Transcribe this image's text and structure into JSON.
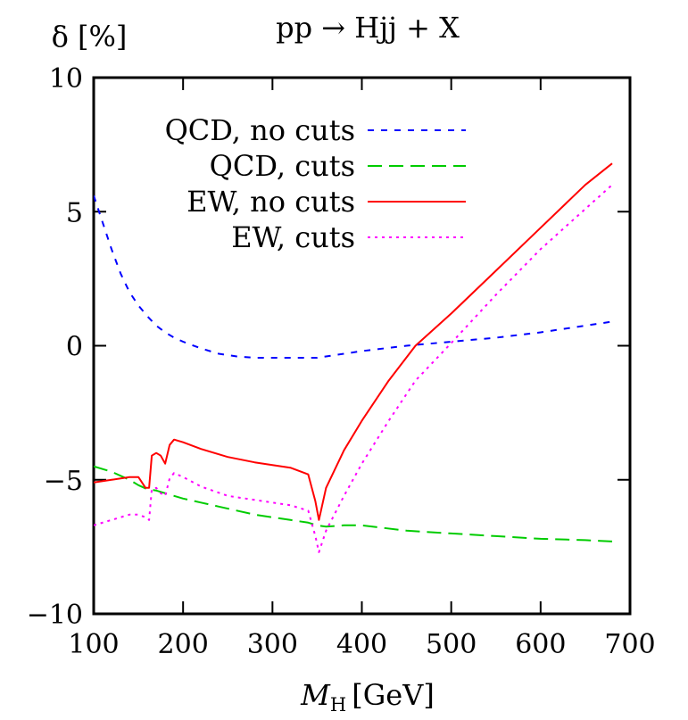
{
  "chart_data": {
    "type": "line",
    "title": "pp → Hjj + X",
    "xlabel": "M",
    "xlabel_sub": "H",
    "xlabel_unit": "[GeV]",
    "ylabel": "δ [%]",
    "xlim": [
      100,
      700
    ],
    "ylim": [
      -10,
      10
    ],
    "xticks": [
      100,
      200,
      300,
      400,
      500,
      600,
      700
    ],
    "yticks": [
      -10,
      -5,
      0,
      5,
      10
    ],
    "ytick_labels": [
      "−10",
      "−5",
      "0",
      "5",
      "10"
    ],
    "grid": false,
    "legend_position": "top-right",
    "series": [
      {
        "name": "QCD, no cuts",
        "color": "#0000ff",
        "dash": "7,8",
        "x": [
          100,
          110,
          120,
          130,
          140,
          150,
          160,
          170,
          180,
          190,
          200,
          220,
          240,
          260,
          280,
          300,
          320,
          340,
          350,
          360,
          380,
          400,
          450,
          500,
          550,
          600,
          650,
          680
        ],
        "y": [
          5.6,
          4.6,
          3.6,
          2.7,
          2.0,
          1.5,
          1.1,
          0.75,
          0.5,
          0.3,
          0.15,
          -0.1,
          -0.3,
          -0.4,
          -0.45,
          -0.45,
          -0.45,
          -0.45,
          -0.45,
          -0.4,
          -0.3,
          -0.2,
          0.0,
          0.15,
          0.3,
          0.5,
          0.75,
          0.9
        ]
      },
      {
        "name": "QCD, cuts",
        "color": "#00cc00",
        "dash": "16,8",
        "x": [
          100,
          120,
          140,
          150,
          160,
          170,
          180,
          190,
          200,
          220,
          240,
          260,
          280,
          300,
          320,
          340,
          350,
          360,
          380,
          400,
          450,
          500,
          550,
          600,
          650,
          680
        ],
        "y": [
          -4.5,
          -4.7,
          -5.0,
          -5.2,
          -5.35,
          -5.4,
          -5.5,
          -5.6,
          -5.7,
          -5.85,
          -6.0,
          -6.15,
          -6.3,
          -6.4,
          -6.5,
          -6.6,
          -6.7,
          -6.75,
          -6.7,
          -6.7,
          -6.9,
          -7.0,
          -7.1,
          -7.2,
          -7.25,
          -7.3
        ]
      },
      {
        "name": "EW, no cuts",
        "color": "#ff0000",
        "dash": "",
        "x": [
          100,
          120,
          140,
          150,
          158,
          162,
          165,
          170,
          175,
          180,
          185,
          190,
          200,
          220,
          250,
          280,
          300,
          320,
          340,
          348,
          352,
          360,
          380,
          400,
          430,
          460,
          500,
          550,
          600,
          650,
          680
        ],
        "y": [
          -5.1,
          -5.0,
          -4.9,
          -4.9,
          -5.3,
          -5.3,
          -4.1,
          -4.0,
          -4.1,
          -4.4,
          -3.7,
          -3.5,
          -3.6,
          -3.85,
          -4.15,
          -4.35,
          -4.45,
          -4.55,
          -4.8,
          -5.8,
          -6.5,
          -5.3,
          -3.9,
          -2.8,
          -1.3,
          0.0,
          1.2,
          2.8,
          4.4,
          6.0,
          6.8
        ]
      },
      {
        "name": "EW, cuts",
        "color": "#ff00ff",
        "dash": "3,5",
        "x": [
          100,
          120,
          140,
          150,
          158,
          162,
          165,
          170,
          175,
          180,
          185,
          190,
          200,
          220,
          250,
          280,
          300,
          320,
          340,
          348,
          352,
          360,
          380,
          400,
          430,
          460,
          500,
          550,
          600,
          650,
          680
        ],
        "y": [
          -6.7,
          -6.5,
          -6.3,
          -6.3,
          -6.4,
          -6.5,
          -5.35,
          -5.3,
          -5.5,
          -5.6,
          -4.95,
          -4.75,
          -4.9,
          -5.25,
          -5.6,
          -5.75,
          -5.85,
          -5.95,
          -6.15,
          -7.1,
          -7.7,
          -6.9,
          -5.6,
          -4.4,
          -2.8,
          -1.3,
          0.1,
          1.9,
          3.6,
          5.1,
          6.0
        ]
      }
    ]
  }
}
